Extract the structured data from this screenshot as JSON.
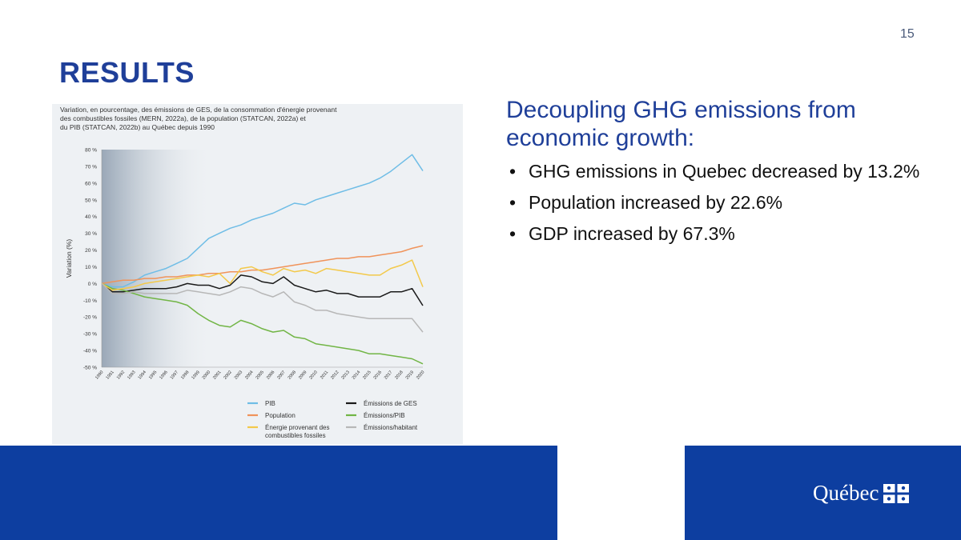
{
  "slide_number": "15",
  "title": "RESULTS",
  "chart_title_lines": [
    "Variation, en pourcentage, des émissions de GES, de la consommation d'énergie provenant",
    "des combustibles fossiles (MERN, 2022a), de la population (STATCAN, 2022a) et",
    "du PIB (STATCAN, 2022b) au Québec depuis 1990"
  ],
  "subtitle": "Decoupling GHG emissions from economic growth:",
  "bullets": [
    "GHG emissions in Quebec decreased by 13.2%",
    "Population increased by 22.6%",
    "GDP increased by 67.3%"
  ],
  "bullet_char": "•",
  "logo_text": "Québec",
  "colors": {
    "brand_blue": "#1f3f99",
    "footer_blue": "#0d3ea0"
  },
  "chart_data": {
    "type": "line",
    "ylabel": "Variation (%)",
    "xlabel": "",
    "ylim": [
      -50,
      80
    ],
    "yticks": [
      80,
      70,
      60,
      50,
      40,
      30,
      20,
      10,
      0,
      -10,
      -20,
      -30,
      -40,
      -50
    ],
    "ytick_suffix": " %",
    "x": [
      1990,
      1991,
      1992,
      1993,
      1994,
      1995,
      1996,
      1997,
      1998,
      1999,
      2000,
      2001,
      2002,
      2003,
      2004,
      2005,
      2006,
      2007,
      2008,
      2009,
      2010,
      2011,
      2012,
      2013,
      2014,
      2015,
      2016,
      2017,
      2018,
      2019,
      2020
    ],
    "grid": false,
    "legend_position": "bottom-right",
    "series": [
      {
        "name": "PIB",
        "color": "#6fbde6",
        "values": [
          0,
          -2,
          -2,
          1,
          5,
          7,
          9,
          12,
          15,
          21,
          27,
          30,
          33,
          35,
          38,
          40,
          42,
          45,
          48,
          47,
          50,
          52,
          54,
          56,
          58,
          60,
          63,
          67,
          72,
          77,
          67.3
        ]
      },
      {
        "name": "Émissions de GES",
        "color": "#1a1a1a",
        "values": [
          0,
          -5,
          -5,
          -4,
          -3,
          -3,
          -3,
          -2,
          0,
          -1,
          -1,
          -3,
          -1,
          5,
          4,
          1,
          0,
          4,
          -1,
          -3,
          -5,
          -4,
          -6,
          -6,
          -8,
          -8,
          -8,
          -5,
          -5,
          -3,
          -13.2
        ]
      },
      {
        "name": "Population",
        "color": "#f0935a",
        "values": [
          0,
          1,
          2,
          2,
          3,
          3,
          4,
          4,
          5,
          5,
          6,
          6,
          7,
          7,
          8,
          8,
          9,
          10,
          11,
          12,
          13,
          14,
          15,
          15,
          16,
          16,
          17,
          18,
          19,
          21,
          22.6
        ]
      },
      {
        "name": "Émissions/PIB",
        "color": "#71b545",
        "values": [
          0,
          -3,
          -4,
          -6,
          -8,
          -9,
          -10,
          -11,
          -13,
          -18,
          -22,
          -25,
          -26,
          -22,
          -24,
          -27,
          -29,
          -28,
          -32,
          -33,
          -36,
          -37,
          -38,
          -39,
          -40,
          -42,
          -42,
          -43,
          -44,
          -45,
          -48
        ]
      },
      {
        "name": "Énergie provenant des combustibles fossiles",
        "color": "#f3c94a",
        "values": [
          0,
          -4,
          -3,
          -2,
          0,
          1,
          2,
          3,
          4,
          5,
          4,
          6,
          0,
          9,
          10,
          7,
          5,
          9,
          7,
          8,
          6,
          9,
          8,
          7,
          6,
          5,
          5,
          9,
          11,
          14,
          -2
        ]
      },
      {
        "name": "Émissions/habitant",
        "color": "#b7b7b7",
        "values": [
          0,
          -6,
          -6,
          -5,
          -6,
          -6,
          -6,
          -6,
          -4,
          -5,
          -6,
          -7,
          -5,
          -2,
          -3,
          -6,
          -8,
          -5,
          -11,
          -13,
          -16,
          -16,
          -18,
          -19,
          -20,
          -21,
          -21,
          -21,
          -21,
          -21,
          -29
        ]
      }
    ],
    "legend": [
      {
        "name": "PIB",
        "color": "#6fbde6"
      },
      {
        "name": "Émissions de GES",
        "color": "#1a1a1a"
      },
      {
        "name": "Population",
        "color": "#f0935a"
      },
      {
        "name": "Émissions/PIB",
        "color": "#71b545"
      },
      {
        "name": "Énergie provenant des combustibles fossiles",
        "color": "#f3c94a",
        "lines": [
          "Énergie provenant des",
          "combustibles fossiles"
        ]
      },
      {
        "name": "Émissions/habitant",
        "color": "#b7b7b7"
      }
    ]
  }
}
